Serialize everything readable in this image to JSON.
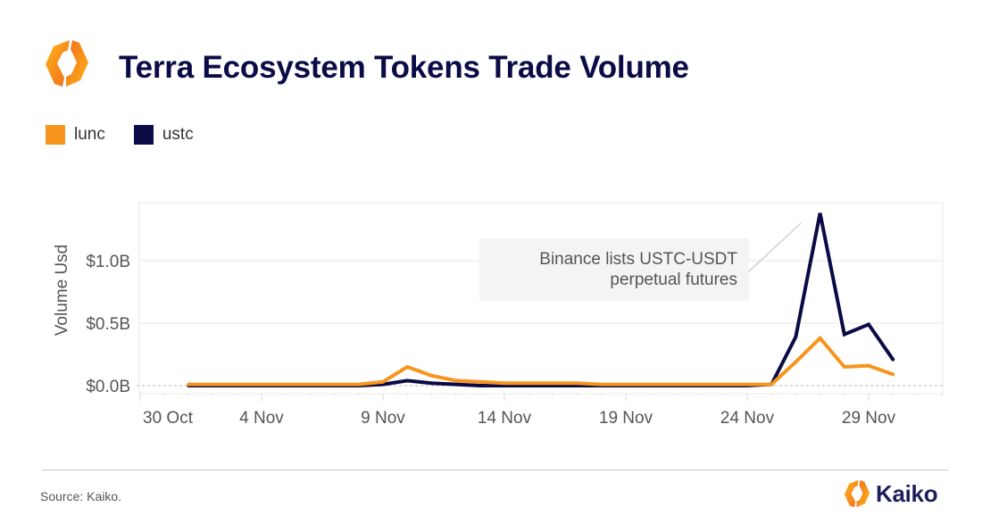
{
  "header": {
    "title": "Terra Ecosystem Tokens Trade Volume",
    "logo_icon": "kaiko-hexagon-icon"
  },
  "legend": [
    {
      "label": "lunc",
      "color": "#f7941d"
    },
    {
      "label": "ustc",
      "color": "#0a0a45"
    }
  ],
  "footer": {
    "source": "Source: Kaiko.",
    "brand": "Kaiko"
  },
  "colors": {
    "accent_orange": "#f7941d",
    "navy": "#0a0a45",
    "grid": "#ececec",
    "annotation_bg": "#f4f4f4"
  },
  "chart_data": {
    "type": "line",
    "title": "Terra Ecosystem Tokens Trade Volume",
    "xlabel": "",
    "ylabel": "Volume Usd",
    "ylim": [
      -0.07,
      1.47
    ],
    "yticks": [
      0.0,
      0.5,
      1.0
    ],
    "ytick_labels": [
      "$0.0B",
      "$0.5B",
      "$1.0B"
    ],
    "xtick_labels": [
      "30 Oct",
      "4 Nov",
      "9 Nov",
      "14 Nov",
      "19 Nov",
      "24 Nov",
      "29 Nov"
    ],
    "xtick_day_index": [
      0,
      5,
      10,
      15,
      20,
      25,
      30
    ],
    "grid": true,
    "legend_position": "top-left",
    "x": [
      "1 Nov",
      "2 Nov",
      "3 Nov",
      "4 Nov",
      "5 Nov",
      "6 Nov",
      "7 Nov",
      "8 Nov",
      "9 Nov",
      "10 Nov",
      "11 Nov",
      "12 Nov",
      "13 Nov",
      "14 Nov",
      "15 Nov",
      "16 Nov",
      "17 Nov",
      "18 Nov",
      "19 Nov",
      "20 Nov",
      "21 Nov",
      "22 Nov",
      "23 Nov",
      "24 Nov",
      "25 Nov",
      "26 Nov",
      "27 Nov",
      "28 Nov",
      "29 Nov",
      "30 Nov"
    ],
    "x_day_index_start": 2,
    "series": [
      {
        "name": "lunc",
        "color": "#f7941d",
        "values": [
          0.01,
          0.01,
          0.01,
          0.01,
          0.01,
          0.01,
          0.01,
          0.01,
          0.03,
          0.15,
          0.08,
          0.04,
          0.03,
          0.02,
          0.02,
          0.02,
          0.02,
          0.01,
          0.01,
          0.01,
          0.01,
          0.01,
          0.01,
          0.01,
          0.01,
          0.19,
          0.38,
          0.15,
          0.16,
          0.09
        ]
      },
      {
        "name": "ustc",
        "color": "#0a0a45",
        "values": [
          0.0,
          0.0,
          0.0,
          0.0,
          0.0,
          0.0,
          0.0,
          0.0,
          0.01,
          0.04,
          0.02,
          0.01,
          0.0,
          0.0,
          0.0,
          0.0,
          0.0,
          0.0,
          0.0,
          0.0,
          0.0,
          0.0,
          0.0,
          0.0,
          0.01,
          0.39,
          1.38,
          0.41,
          0.49,
          0.21
        ]
      }
    ],
    "annotations": [
      {
        "text_lines": [
          "Binance lists USTC-USDT",
          "perpetual futures"
        ],
        "points_to": "27 Nov ustc peak"
      }
    ]
  }
}
